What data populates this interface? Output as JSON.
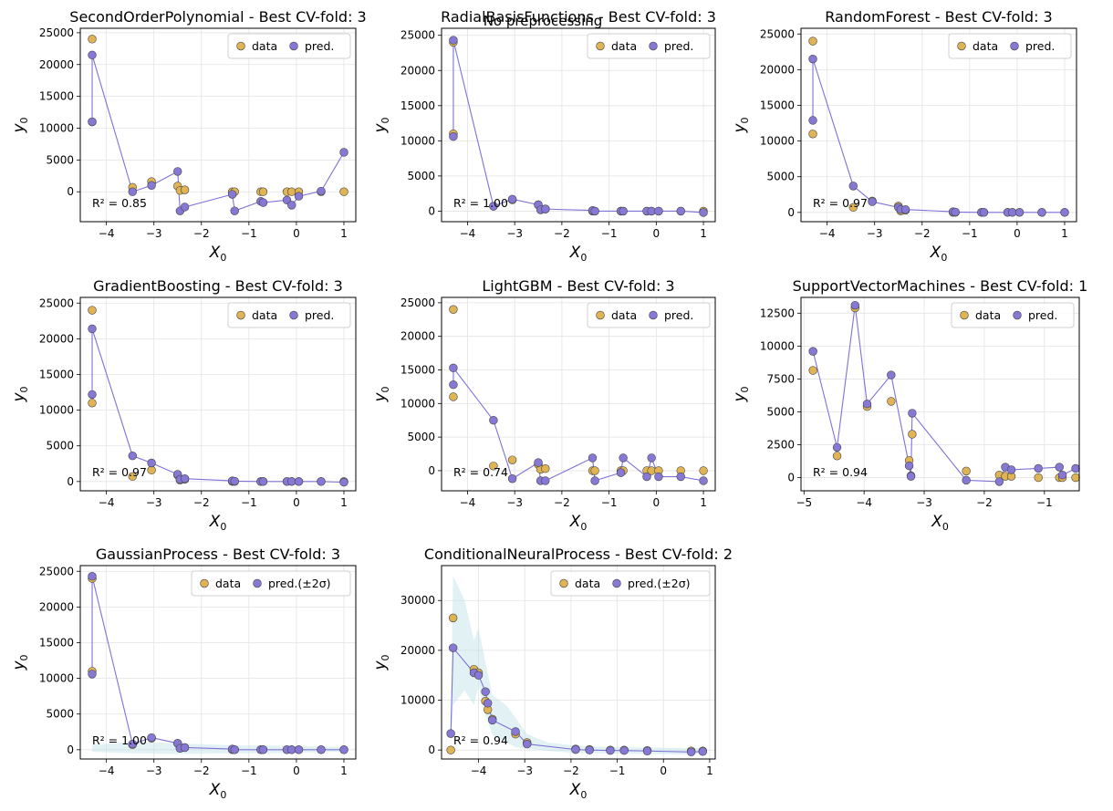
{
  "figure": {
    "suptitle": "No preprocessing"
  },
  "colors": {
    "data": "#e0b455",
    "pred": "#8878d6",
    "line": "#7d72d8",
    "band": "#bfe3e6"
  },
  "chart_data": [
    {
      "type": "scatter",
      "title": "SecondOrderPolynomial - Best CV-fold: 3",
      "xlabel": "X",
      "xlabel_sub": "0",
      "ylabel": "y",
      "ylabel_sub": "0",
      "xlim": [
        -4.55,
        1.25
      ],
      "ylim": [
        -4700,
        25700
      ],
      "xticks": [
        -4,
        -3,
        -2,
        -1,
        0,
        1
      ],
      "yticks": [
        0,
        5000,
        10000,
        15000,
        20000,
        25000
      ],
      "legend": [
        "data",
        "pred."
      ],
      "r2": "R² = 0.85",
      "data": [
        [
          -4.3,
          24000
        ],
        [
          -4.3,
          11000
        ],
        [
          -3.45,
          700
        ],
        [
          -3.05,
          1600
        ],
        [
          -2.5,
          900
        ],
        [
          -2.45,
          200
        ],
        [
          -2.35,
          300
        ],
        [
          -1.35,
          0
        ],
        [
          -1.3,
          0
        ],
        [
          -0.75,
          0
        ],
        [
          -0.7,
          0
        ],
        [
          -0.2,
          0
        ],
        [
          -0.1,
          0
        ],
        [
          0.05,
          0
        ],
        [
          0.52,
          0
        ],
        [
          1.0,
          0
        ]
      ],
      "pred": [
        [
          -4.3,
          11000
        ],
        [
          -4.3,
          21500
        ],
        [
          -3.45,
          0
        ],
        [
          -3.05,
          1000
        ],
        [
          -2.5,
          3200
        ],
        [
          -2.45,
          -3000
        ],
        [
          -2.35,
          -2400
        ],
        [
          -1.35,
          -400
        ],
        [
          -1.3,
          -3000
        ],
        [
          -0.75,
          -1500
        ],
        [
          -0.7,
          -1700
        ],
        [
          -0.2,
          -1300
        ],
        [
          -0.1,
          -2100
        ],
        [
          0.05,
          -700
        ],
        [
          0.52,
          100
        ],
        [
          1.0,
          6200
        ]
      ]
    },
    {
      "type": "scatter",
      "title": "RadialBasisFunctions - Best CV-fold: 3",
      "xlabel": "X",
      "xlabel_sub": "0",
      "ylabel": "y",
      "ylabel_sub": "0",
      "xlim": [
        -4.55,
        1.25
      ],
      "ylim": [
        -1500,
        26000
      ],
      "xticks": [
        -4,
        -3,
        -2,
        -1,
        0,
        1
      ],
      "yticks": [
        0,
        5000,
        10000,
        15000,
        20000,
        25000
      ],
      "legend": [
        "data",
        "pred."
      ],
      "r2": "R² = 1.00",
      "data": [
        [
          -4.3,
          24000
        ],
        [
          -4.3,
          11000
        ],
        [
          -3.45,
          700
        ],
        [
          -3.05,
          1600
        ],
        [
          -2.5,
          900
        ],
        [
          -2.45,
          200
        ],
        [
          -2.35,
          300
        ],
        [
          -1.35,
          0
        ],
        [
          -1.3,
          0
        ],
        [
          -0.75,
          0
        ],
        [
          -0.7,
          0
        ],
        [
          -0.2,
          0
        ],
        [
          -0.1,
          0
        ],
        [
          0.05,
          0
        ],
        [
          0.52,
          0
        ],
        [
          1.0,
          0
        ]
      ],
      "pred": [
        [
          -4.3,
          10600
        ],
        [
          -4.3,
          24300
        ],
        [
          -3.45,
          700
        ],
        [
          -3.05,
          1700
        ],
        [
          -2.5,
          900
        ],
        [
          -2.45,
          200
        ],
        [
          -2.35,
          300
        ],
        [
          -1.35,
          100
        ],
        [
          -1.3,
          0
        ],
        [
          -0.75,
          0
        ],
        [
          -0.7,
          0
        ],
        [
          -0.2,
          0
        ],
        [
          -0.1,
          0
        ],
        [
          0.05,
          0
        ],
        [
          0.52,
          0
        ],
        [
          1.0,
          -200
        ]
      ]
    },
    {
      "type": "scatter",
      "title": "RandomForest - Best CV-fold: 3",
      "xlabel": "X",
      "xlabel_sub": "0",
      "ylabel": "y",
      "ylabel_sub": "0",
      "xlim": [
        -4.55,
        1.25
      ],
      "ylim": [
        -1300,
        25800
      ],
      "xticks": [
        -4,
        -3,
        -2,
        -1,
        0,
        1
      ],
      "yticks": [
        0,
        5000,
        10000,
        15000,
        20000,
        25000
      ],
      "legend": [
        "data",
        "pred."
      ],
      "r2": "R² = 0.97",
      "data": [
        [
          -4.3,
          24000
        ],
        [
          -4.3,
          11000
        ],
        [
          -3.45,
          700
        ],
        [
          -3.05,
          1600
        ],
        [
          -2.5,
          900
        ],
        [
          -2.45,
          200
        ],
        [
          -2.35,
          300
        ],
        [
          -1.35,
          0
        ],
        [
          -1.3,
          0
        ],
        [
          -0.75,
          0
        ],
        [
          -0.7,
          0
        ],
        [
          -0.2,
          0
        ],
        [
          -0.1,
          0
        ],
        [
          0.05,
          0
        ],
        [
          0.52,
          0
        ],
        [
          1.0,
          0
        ]
      ],
      "pred": [
        [
          -4.3,
          12900
        ],
        [
          -4.3,
          21500
        ],
        [
          -3.45,
          3700
        ],
        [
          -3.05,
          1500
        ],
        [
          -2.5,
          700
        ],
        [
          -2.45,
          400
        ],
        [
          -2.35,
          400
        ],
        [
          -1.35,
          100
        ],
        [
          -1.3,
          50
        ],
        [
          -0.75,
          0
        ],
        [
          -0.7,
          0
        ],
        [
          -0.2,
          0
        ],
        [
          -0.1,
          0
        ],
        [
          0.05,
          0
        ],
        [
          0.52,
          0
        ],
        [
          1.0,
          0
        ]
      ]
    },
    {
      "type": "scatter",
      "title": "GradientBoosting - Best CV-fold: 3",
      "xlabel": "X",
      "xlabel_sub": "0",
      "ylabel": "y",
      "ylabel_sub": "0",
      "xlim": [
        -4.55,
        1.25
      ],
      "ylim": [
        -1300,
        25800
      ],
      "xticks": [
        -4,
        -3,
        -2,
        -1,
        0,
        1
      ],
      "yticks": [
        0,
        5000,
        10000,
        15000,
        20000,
        25000
      ],
      "legend": [
        "data",
        "pred."
      ],
      "r2": "R² = 0.97",
      "data": [
        [
          -4.3,
          24000
        ],
        [
          -4.3,
          11000
        ],
        [
          -3.45,
          700
        ],
        [
          -3.05,
          1600
        ],
        [
          -2.5,
          900
        ],
        [
          -2.45,
          200
        ],
        [
          -2.35,
          300
        ],
        [
          -1.35,
          0
        ],
        [
          -1.3,
          0
        ],
        [
          -0.75,
          0
        ],
        [
          -0.7,
          0
        ],
        [
          -0.2,
          0
        ],
        [
          -0.1,
          0
        ],
        [
          0.05,
          0
        ],
        [
          0.52,
          0
        ],
        [
          1.0,
          0
        ]
      ],
      "pred": [
        [
          -4.3,
          12200
        ],
        [
          -4.3,
          21400
        ],
        [
          -3.45,
          3600
        ],
        [
          -3.05,
          2600
        ],
        [
          -2.5,
          1000
        ],
        [
          -2.45,
          300
        ],
        [
          -2.35,
          400
        ],
        [
          -1.35,
          100
        ],
        [
          -1.3,
          50
        ],
        [
          -0.75,
          0
        ],
        [
          -0.7,
          0
        ],
        [
          -0.2,
          0
        ],
        [
          -0.1,
          0
        ],
        [
          0.05,
          0
        ],
        [
          0.52,
          0
        ],
        [
          1.0,
          -100
        ]
      ]
    },
    {
      "type": "scatter",
      "title": "LightGBM - Best CV-fold: 3",
      "xlabel": "X",
      "xlabel_sub": "0",
      "ylabel": "y",
      "ylabel_sub": "0",
      "xlim": [
        -4.55,
        1.25
      ],
      "ylim": [
        -3000,
        25800
      ],
      "xticks": [
        -4,
        -3,
        -2,
        -1,
        0,
        1
      ],
      "yticks": [
        0,
        5000,
        10000,
        15000,
        20000,
        25000
      ],
      "legend": [
        "data",
        "pred."
      ],
      "r2": "R² = 0.74",
      "data": [
        [
          -4.3,
          24000
        ],
        [
          -4.3,
          11000
        ],
        [
          -3.45,
          700
        ],
        [
          -3.05,
          1600
        ],
        [
          -2.5,
          900
        ],
        [
          -2.45,
          200
        ],
        [
          -2.35,
          300
        ],
        [
          -1.35,
          0
        ],
        [
          -1.3,
          0
        ],
        [
          -0.75,
          0
        ],
        [
          -0.7,
          0
        ],
        [
          -0.2,
          0
        ],
        [
          -0.1,
          0
        ],
        [
          0.05,
          0
        ],
        [
          0.52,
          0
        ],
        [
          1.0,
          0
        ]
      ],
      "pred": [
        [
          -4.3,
          12800
        ],
        [
          -4.3,
          15300
        ],
        [
          -3.45,
          7500
        ],
        [
          -3.05,
          -1200
        ],
        [
          -2.5,
          1200
        ],
        [
          -2.45,
          -1500
        ],
        [
          -2.35,
          -1500
        ],
        [
          -1.35,
          1900
        ],
        [
          -1.3,
          -1500
        ],
        [
          -0.75,
          -300
        ],
        [
          -0.7,
          1900
        ],
        [
          -0.2,
          -900
        ],
        [
          -0.1,
          1900
        ],
        [
          0.05,
          -900
        ],
        [
          0.52,
          -900
        ],
        [
          1.0,
          -1500
        ]
      ]
    },
    {
      "type": "scatter",
      "title": "SupportVectorMachines - Best CV-fold: 1",
      "xlabel": "X",
      "xlabel_sub": "0",
      "ylabel": "y",
      "ylabel_sub": "0",
      "xlim": [
        -5.05,
        -0.42
      ],
      "ylim": [
        -1000,
        13700
      ],
      "xticks": [
        -5,
        -4,
        -3,
        -2,
        -1
      ],
      "yticks": [
        0,
        2500,
        5000,
        7500,
        10000,
        12500
      ],
      "legend": [
        "data",
        "pred."
      ],
      "r2": "R² = 0.94",
      "data": [
        [
          -4.85,
          8150
        ],
        [
          -4.45,
          1650
        ],
        [
          -4.15,
          12900
        ],
        [
          -3.95,
          5400
        ],
        [
          -3.55,
          5800
        ],
        [
          -3.25,
          1300
        ],
        [
          -3.22,
          150
        ],
        [
          -3.2,
          3300
        ],
        [
          -2.3,
          500
        ],
        [
          -1.75,
          200
        ],
        [
          -1.65,
          100
        ],
        [
          -1.55,
          100
        ],
        [
          -1.1,
          0
        ],
        [
          -0.75,
          0
        ],
        [
          -0.7,
          0
        ],
        [
          -0.48,
          0
        ]
      ],
      "pred": [
        [
          -4.85,
          9600
        ],
        [
          -4.45,
          2300
        ],
        [
          -4.15,
          13100
        ],
        [
          -3.95,
          5600
        ],
        [
          -3.55,
          7800
        ],
        [
          -3.25,
          900
        ],
        [
          -3.22,
          100
        ],
        [
          -3.2,
          4900
        ],
        [
          -2.3,
          -200
        ],
        [
          -1.75,
          -300
        ],
        [
          -1.65,
          800
        ],
        [
          -1.55,
          600
        ],
        [
          -1.1,
          700
        ],
        [
          -0.75,
          800
        ],
        [
          -0.7,
          200
        ],
        [
          -0.48,
          700
        ]
      ]
    },
    {
      "type": "scatter",
      "title": "GaussianProcess - Best CV-fold: 3",
      "xlabel": "X",
      "xlabel_sub": "0",
      "ylabel": "y",
      "ylabel_sub": "0",
      "xlim": [
        -4.55,
        1.25
      ],
      "ylim": [
        -1300,
        25800
      ],
      "xticks": [
        -4,
        -3,
        -2,
        -1,
        0,
        1
      ],
      "yticks": [
        0,
        5000,
        10000,
        15000,
        20000,
        25000
      ],
      "legend": [
        "data",
        "pred.(±2σ)"
      ],
      "r2": "R² = 1.00",
      "data": [
        [
          -4.3,
          24000
        ],
        [
          -4.3,
          11000
        ],
        [
          -3.45,
          700
        ],
        [
          -3.05,
          1600
        ],
        [
          -2.5,
          900
        ],
        [
          -2.45,
          200
        ],
        [
          -2.35,
          300
        ],
        [
          -1.35,
          0
        ],
        [
          -1.3,
          0
        ],
        [
          -0.75,
          0
        ],
        [
          -0.7,
          0
        ],
        [
          -0.2,
          0
        ],
        [
          -0.1,
          0
        ],
        [
          0.05,
          0
        ],
        [
          0.52,
          0
        ],
        [
          1.0,
          0
        ]
      ],
      "pred": [
        [
          -4.3,
          10600
        ],
        [
          -4.3,
          24300
        ],
        [
          -3.45,
          800
        ],
        [
          -3.05,
          1700
        ],
        [
          -2.5,
          900
        ],
        [
          -2.45,
          200
        ],
        [
          -2.35,
          300
        ],
        [
          -1.35,
          100
        ],
        [
          -1.3,
          0
        ],
        [
          -0.75,
          0
        ],
        [
          -0.7,
          0
        ],
        [
          -0.2,
          0
        ],
        [
          -0.1,
          0
        ],
        [
          0.05,
          0
        ],
        [
          0.52,
          0
        ],
        [
          1.0,
          0
        ]
      ],
      "band": [
        [
          -4.3,
          -300,
          700
        ],
        [
          -3.45,
          -500,
          1100
        ],
        [
          -2.5,
          -600,
          900
        ],
        [
          -1.3,
          -500,
          600
        ],
        [
          -0.7,
          -500,
          600
        ],
        [
          0.05,
          -400,
          500
        ],
        [
          1.0,
          -300,
          400
        ]
      ]
    },
    {
      "type": "scatter",
      "title": "ConditionalNeuralProcess - Best CV-fold: 2",
      "xlabel": "X",
      "xlabel_sub": "0",
      "ylabel": "y",
      "ylabel_sub": "0",
      "xlim": [
        -4.8,
        1.12
      ],
      "ylim": [
        -1800,
        37000
      ],
      "xticks": [
        -4,
        -3,
        -2,
        -1,
        0,
        1
      ],
      "yticks": [
        0,
        10000,
        20000,
        30000
      ],
      "legend": [
        "data",
        "pred.(±2σ)"
      ],
      "r2": "R² = 0.94",
      "data": [
        [
          -4.6,
          0
        ],
        [
          -4.55,
          26500
        ],
        [
          -4.1,
          16200
        ],
        [
          -4.0,
          15500
        ],
        [
          -3.85,
          9800
        ],
        [
          -3.8,
          8100
        ],
        [
          -3.7,
          6200
        ],
        [
          -3.2,
          3200
        ],
        [
          -2.95,
          1500
        ],
        [
          -1.9,
          200
        ],
        [
          -1.6,
          100
        ],
        [
          -1.15,
          0
        ],
        [
          -0.85,
          0
        ],
        [
          -0.35,
          -100
        ],
        [
          0.6,
          -200
        ],
        [
          0.85,
          -200
        ]
      ],
      "pred": [
        [
          -4.6,
          3300
        ],
        [
          -4.55,
          20500
        ],
        [
          -4.1,
          15500
        ],
        [
          -4.0,
          15000
        ],
        [
          -3.85,
          11700
        ],
        [
          -3.8,
          9400
        ],
        [
          -3.7,
          6000
        ],
        [
          -3.2,
          3700
        ],
        [
          -2.95,
          1200
        ],
        [
          -1.9,
          100
        ],
        [
          -1.6,
          0
        ],
        [
          -1.15,
          -100
        ],
        [
          -0.85,
          -100
        ],
        [
          -0.35,
          -200
        ],
        [
          0.6,
          -400
        ],
        [
          0.85,
          -300
        ]
      ],
      "band": [
        [
          -4.6,
          -200,
          7000
        ],
        [
          -4.55,
          9000,
          35000
        ],
        [
          -4.3,
          12000,
          30000
        ],
        [
          -4.1,
          9000,
          22000
        ],
        [
          -4.0,
          13000,
          24500
        ],
        [
          -3.85,
          7000,
          17500
        ],
        [
          -3.7,
          3000,
          11000
        ],
        [
          -3.4,
          1500,
          9000
        ],
        [
          -3.2,
          600,
          6500
        ],
        [
          -2.95,
          300,
          3200
        ],
        [
          -2.5,
          -200,
          1500
        ],
        [
          -1.9,
          -600,
          900
        ],
        [
          -1.15,
          -700,
          600
        ],
        [
          -0.35,
          -800,
          500
        ],
        [
          0.6,
          -900,
          400
        ],
        [
          0.85,
          -900,
          400
        ]
      ]
    }
  ]
}
